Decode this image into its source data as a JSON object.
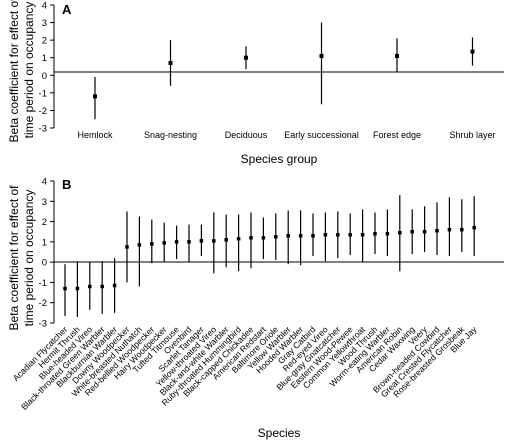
{
  "chart_data": [
    {
      "type": "scatter",
      "panel_label": "A",
      "ylabel": "Beta coefficient for effect of time period on occupancy",
      "xlabel": "Species group",
      "ylim": [
        -3,
        4
      ],
      "yticks": [
        -3,
        -2,
        -1,
        0,
        1,
        2,
        3,
        4
      ],
      "categories": [
        "Hemlock",
        "Snag-nesting",
        "Deciduous",
        "Early successional",
        "Forest edge",
        "Shrub layer"
      ],
      "values": [
        -1.2,
        0.7,
        1.0,
        1.1,
        1.1,
        1.35
      ],
      "lower": [
        -2.5,
        -0.6,
        0.35,
        -1.65,
        0.2,
        0.55
      ],
      "upper": [
        -0.1,
        2.0,
        1.65,
        3.0,
        2.1,
        2.15
      ],
      "grid": false
    },
    {
      "type": "scatter",
      "panel_label": "B",
      "ylabel": "Beta coefficient for effect of time period on occupancy",
      "xlabel": "Species",
      "ylim": [
        -3,
        4
      ],
      "yticks": [
        -3,
        -2,
        -1,
        0,
        1,
        2,
        3,
        4
      ],
      "categories": [
        "Acadian Flycatcher",
        "Hermit Thrush",
        "Blue-headed Vireo",
        "Black-throated Green Warbler",
        "Blackburnian Warbler",
        "Downy Woodpecker",
        "White-breasted Nuthatch",
        "Red-bellied Woodpecker",
        "Hairy Woodpecker",
        "Tufted Titmouse",
        "Ovenbird",
        "Scarlet Tanager",
        "Yellow-throated Vireo",
        "Black-and-white Warbler",
        "Ruby-throated Hummingbird",
        "Black-capped Chickadee",
        "American Redstart",
        "Baltimore Oriole",
        "Yellow Warbler",
        "Hooded Warbler",
        "Gray Catbird",
        "Red-eyed Vireo",
        "Blue-gray Gnatcatcher",
        "Eastern Wood-Pewee",
        "Common Yellowthroat",
        "Wood Thrush",
        "Worm-eating Warbler",
        "American Robin",
        "Cedar Waxwing",
        "Veery",
        "Brown-headed Cowbird",
        "Great Crested Flycatcher",
        "Rose-breasted Grosbeak",
        "Blue Jay"
      ],
      "values": [
        -1.3,
        -1.3,
        -1.2,
        -1.2,
        -1.15,
        0.75,
        0.85,
        0.9,
        0.95,
        1.0,
        1.0,
        1.05,
        1.05,
        1.1,
        1.15,
        1.2,
        1.2,
        1.25,
        1.3,
        1.3,
        1.3,
        1.35,
        1.35,
        1.35,
        1.35,
        1.4,
        1.4,
        1.45,
        1.5,
        1.5,
        1.55,
        1.6,
        1.6,
        1.7
      ],
      "lower": [
        -2.65,
        -2.7,
        -2.35,
        -2.55,
        -2.5,
        -1.0,
        -1.2,
        -0.05,
        0.0,
        0.15,
        0.0,
        0.3,
        -0.55,
        -0.25,
        -0.45,
        -0.3,
        0.15,
        0.1,
        -0.1,
        -0.15,
        0.3,
        0.05,
        0.2,
        0.35,
        0.0,
        0.4,
        0.3,
        -0.45,
        0.4,
        0.5,
        0.35,
        0.3,
        0.5,
        0.3
      ],
      "upper": [
        -0.1,
        0.05,
        0.0,
        0.05,
        0.2,
        2.5,
        2.25,
        2.1,
        1.95,
        1.8,
        1.85,
        1.85,
        2.45,
        2.35,
        2.35,
        2.45,
        2.2,
        2.4,
        2.55,
        2.55,
        2.4,
        2.45,
        2.5,
        2.4,
        2.6,
        2.45,
        2.6,
        3.3,
        2.6,
        2.75,
        2.95,
        3.2,
        3.1,
        3.25
      ],
      "grid": false
    }
  ]
}
